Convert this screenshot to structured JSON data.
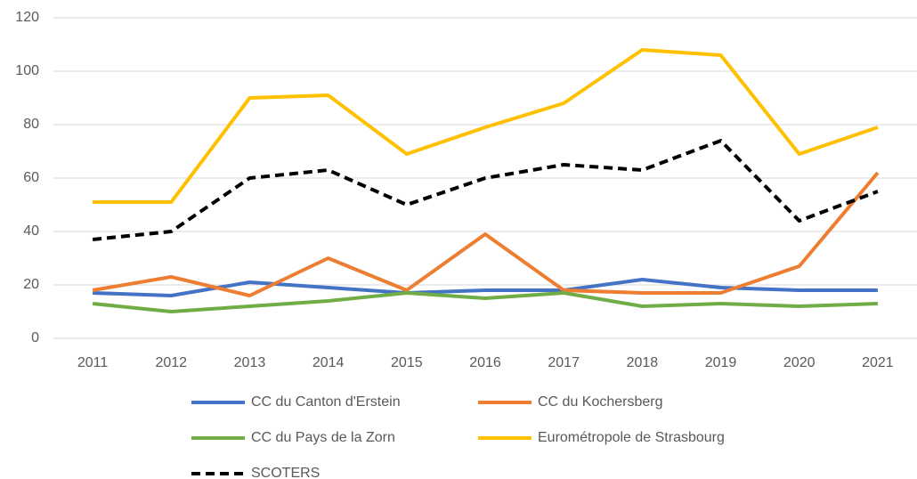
{
  "chart_data": {
    "type": "line",
    "categories": [
      "2011",
      "2012",
      "2013",
      "2014",
      "2015",
      "2016",
      "2017",
      "2018",
      "2019",
      "2020",
      "2021"
    ],
    "series": [
      {
        "name": "CC du Canton d'Erstein",
        "color": "#4472c4",
        "values": [
          17,
          16,
          21,
          19,
          17,
          18,
          18,
          22,
          19,
          18,
          18
        ]
      },
      {
        "name": "CC du Kochersberg",
        "color": "#ed7d31",
        "values": [
          18,
          23,
          16,
          30,
          18,
          39,
          18,
          17,
          17,
          27,
          62
        ]
      },
      {
        "name": "CC du Pays de la Zorn",
        "color": "#70ad47",
        "values": [
          13,
          10,
          12,
          14,
          17,
          15,
          17,
          12,
          13,
          12,
          13
        ]
      },
      {
        "name": "Eurométropole de Strasbourg",
        "color": "#ffc000",
        "values": [
          51,
          51,
          90,
          91,
          69,
          79,
          88,
          108,
          106,
          69,
          79
        ]
      },
      {
        "name": "SCOTERS",
        "color": "#000000",
        "dashed": true,
        "values": [
          37,
          40,
          60,
          63,
          50,
          60,
          65,
          63,
          74,
          44,
          55
        ]
      }
    ],
    "ylim": [
      0,
      120
    ],
    "yticks": [
      0,
      20,
      40,
      60,
      80,
      100,
      120
    ],
    "grid": true,
    "legend": "bottom"
  }
}
